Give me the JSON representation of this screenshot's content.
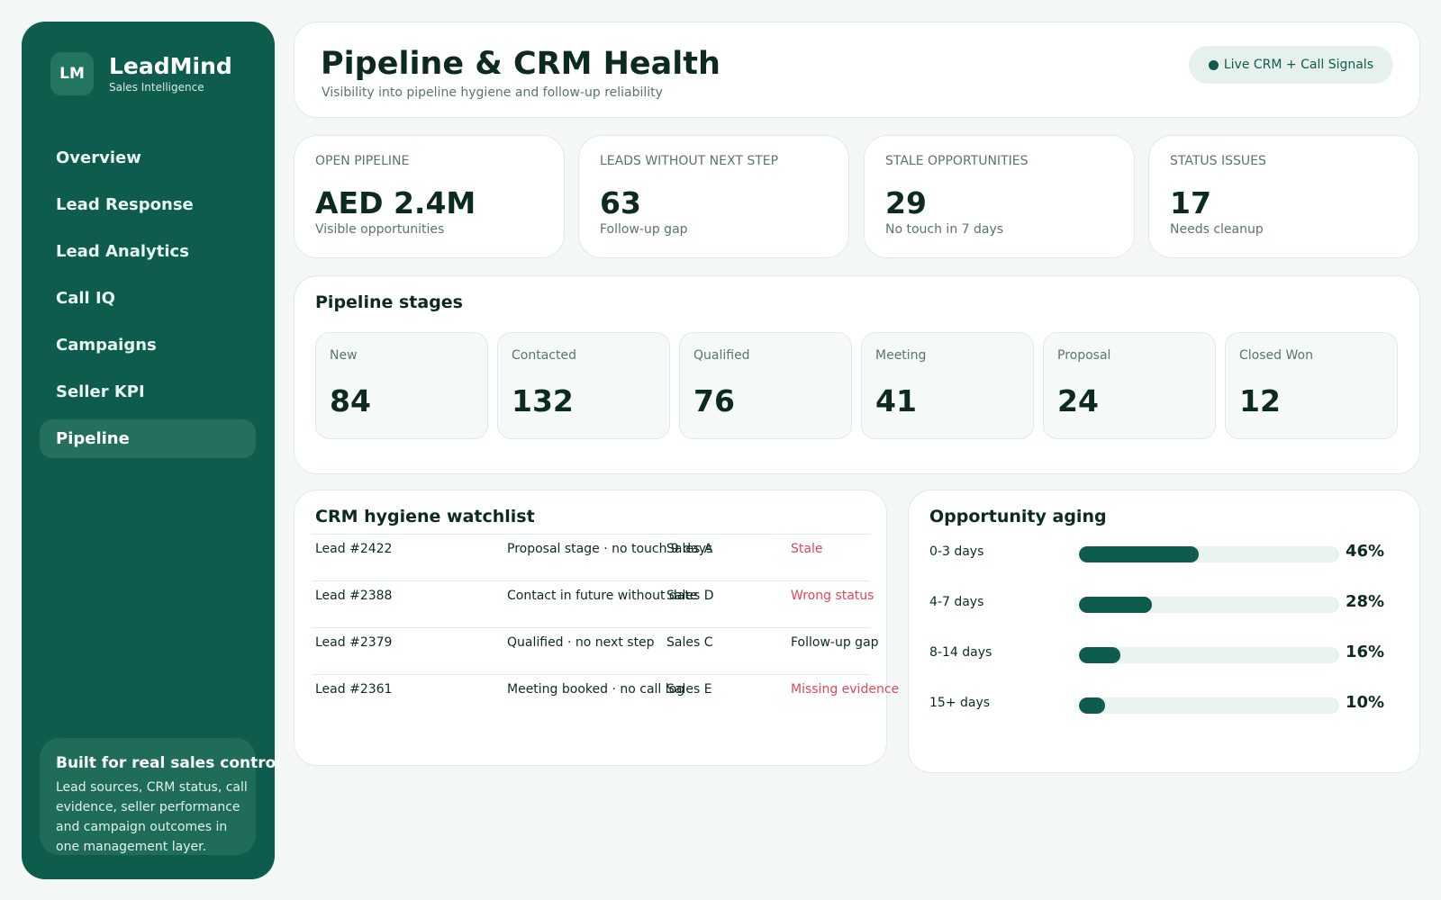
{
  "brand": {
    "mark": "LM",
    "name": "LeadMind",
    "subtitle": "Sales Intelligence"
  },
  "nav": {
    "items": [
      {
        "label": "Overview",
        "active": false
      },
      {
        "label": "Lead Response",
        "active": false
      },
      {
        "label": "Lead Analytics",
        "active": false
      },
      {
        "label": "Call IQ",
        "active": false
      },
      {
        "label": "Campaigns",
        "active": false
      },
      {
        "label": "Seller KPI",
        "active": false
      },
      {
        "label": "Pipeline",
        "active": true
      }
    ]
  },
  "promo": {
    "title": "Built for real sales control",
    "text": "Lead sources, CRM status, call evidence, seller performance and campaign outcomes in one management layer."
  },
  "header": {
    "title": "Pipeline & CRM Health",
    "subtitle": "Visibility into pipeline hygiene and follow-up reliability",
    "badge": "Live CRM + Call Signals"
  },
  "kpis": [
    {
      "label": "OPEN PIPELINE",
      "value": "AED 2.4M",
      "note": "Visible opportunities"
    },
    {
      "label": "LEADS WITHOUT NEXT STEP",
      "value": "63",
      "note": "Follow-up gap"
    },
    {
      "label": "STALE OPPORTUNITIES",
      "value": "29",
      "note": "No touch in 7 days"
    },
    {
      "label": "STATUS ISSUES",
      "value": "17",
      "note": "Needs cleanup"
    }
  ],
  "stages": {
    "title": "Pipeline stages",
    "items": [
      {
        "label": "New",
        "value": "84"
      },
      {
        "label": "Contacted",
        "value": "132"
      },
      {
        "label": "Qualified",
        "value": "76"
      },
      {
        "label": "Meeting",
        "value": "41"
      },
      {
        "label": "Proposal",
        "value": "24"
      },
      {
        "label": "Closed Won",
        "value": "12"
      }
    ]
  },
  "watchlist": {
    "title": "CRM hygiene watchlist",
    "rows": [
      {
        "lead": "Lead #2422",
        "issue": "Proposal stage · no touch 9 days",
        "owner": "Sales A",
        "status": "Stale",
        "status_color": "#e0475a"
      },
      {
        "lead": "Lead #2388",
        "issue": "Contact in future without date",
        "owner": "Sales D",
        "status": "Wrong status",
        "status_color": "#e0475a"
      },
      {
        "lead": "Lead #2379",
        "issue": "Qualified · no next step",
        "owner": "Sales C",
        "status": "Follow-up gap",
        "status_color": "#0d2a22"
      },
      {
        "lead": "Lead #2361",
        "issue": "Meeting booked · no call log",
        "owner": "Sales E",
        "status": "Missing evidence",
        "status_color": "#e0475a"
      }
    ]
  },
  "aging": {
    "title": "Opportunity aging",
    "items": [
      {
        "label": "0-3 days",
        "pct": "46%",
        "value": 46
      },
      {
        "label": "4-7 days",
        "pct": "28%",
        "value": 28
      },
      {
        "label": "8-14 days",
        "pct": "16%",
        "value": 16
      },
      {
        "label": "15+ days",
        "pct": "10%",
        "value": 10
      }
    ]
  },
  "colors": {
    "accent": "#0e5c4d",
    "alert": "#e0475a",
    "background": "#f3f8f6"
  }
}
